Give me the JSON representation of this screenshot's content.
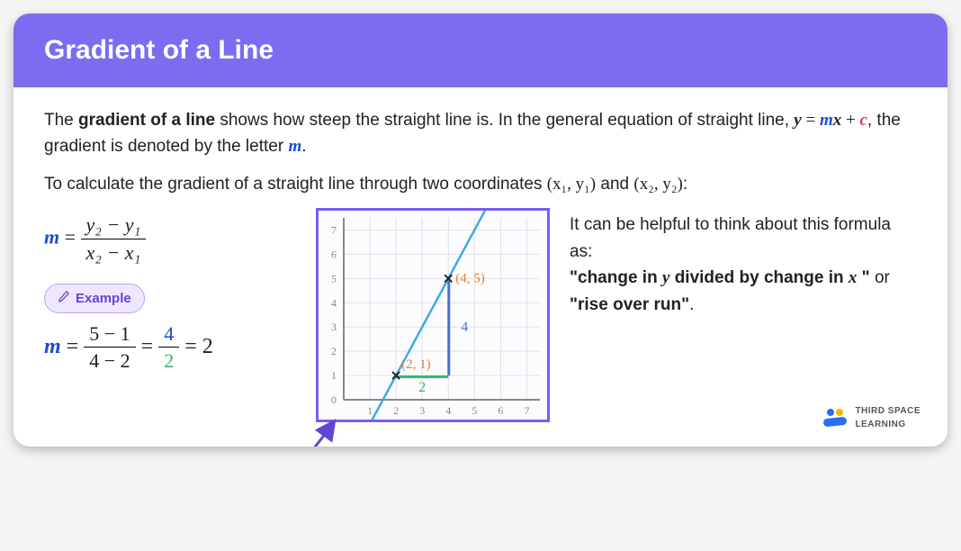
{
  "header": {
    "title": "Gradient of a Line"
  },
  "intro": {
    "p1a": "The ",
    "term": "gradient of a line",
    "p1b": " shows how steep the straight line is. In the general equation of straight line, ",
    "eq_y": "y",
    "eq_eq": " = ",
    "eq_m": "m",
    "eq_x": "x",
    "eq_plus": " + ",
    "eq_c": "c",
    "p1c": ", the gradient is denoted by the letter ",
    "letter_m": "m",
    "p1d": "."
  },
  "para2": {
    "t1": "To calculate the gradient of a straight line through two coordinates ",
    "c1": "(x₁, y₁)",
    "t2": " and ",
    "c2": "(x₂, y₂)",
    "t3": ":"
  },
  "formula": {
    "lhs": "m",
    "eq": " = ",
    "num": "y₂ − y₁",
    "den": "x₂ − x₁"
  },
  "example": {
    "chip_label": "Example",
    "lhs": "m",
    "eq": " = ",
    "n1": "5 − 1",
    "d1": "4 − 2",
    "mid": " = ",
    "n2": "4",
    "d2": "2",
    "tail": " = 2"
  },
  "chart": {
    "xlim": [
      0,
      7.5
    ],
    "ylim": [
      0,
      7.5
    ],
    "grid_color": "#e0e0e8",
    "axis_color": "#888",
    "label_color": "#888",
    "line_color": "#3fa9e8",
    "point_color": "#222",
    "point1_label": "(2, 1)",
    "point2_label": "(4, 5)",
    "run_color": "#3cb371",
    "rise_color": "#4a6fd4",
    "run_label": "2",
    "rise_label": "4",
    "label_orange": "#e67e22",
    "ticks": [
      0,
      1,
      2,
      3,
      4,
      5,
      6,
      7
    ],
    "p1": [
      2,
      1
    ],
    "p2": [
      4,
      5
    ]
  },
  "tip": {
    "t1": "It can be helpful to think about this formula as:",
    "q1a": "\"change in ",
    "q_y": "y",
    "q1b": " divided by change in ",
    "q_x": "x",
    "q1c": " \"",
    "or": " or",
    "q2": "\"rise over run\"",
    "dot": "."
  },
  "brand": {
    "line1": "THIRD SPACE",
    "line2": "LEARNING"
  },
  "colors": {
    "header_bg": "#7c6cf0",
    "m": "#1a4cd6",
    "c": "#d63384",
    "arrow": "#6145d9",
    "numer_col": "#1a4cd6",
    "denom_col": "#3cb371"
  }
}
